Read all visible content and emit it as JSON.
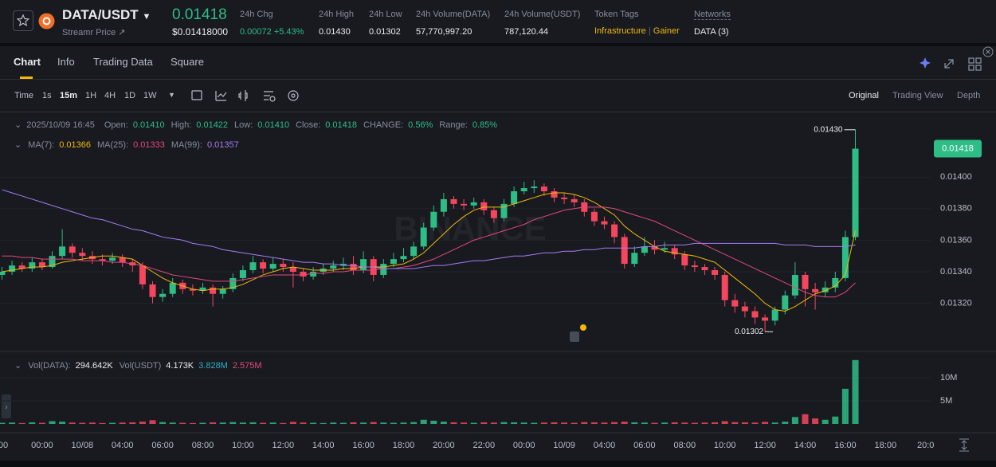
{
  "header": {
    "pair": "DATA/USDT",
    "source": "Streamr Price ↗",
    "price": "0.01418",
    "price_usd": "$0.01418000",
    "stats": [
      {
        "label": "24h Chg",
        "value": "0.00072 +5.43%"
      },
      {
        "label": "24h High",
        "value": "0.01430"
      },
      {
        "label": "24h Low",
        "value": "0.01302"
      },
      {
        "label": "24h Volume(DATA)",
        "value": "57,770,997.20"
      },
      {
        "label": "24h Volume(USDT)",
        "value": "787,120.44"
      }
    ],
    "token_tags_label": "Token Tags",
    "token_tags": [
      "Infrastructure",
      "Gainer"
    ],
    "networks_label": "Networks",
    "networks": "DATA (3)"
  },
  "tabs": [
    "Chart",
    "Info",
    "Trading Data",
    "Square"
  ],
  "intervals": [
    "Time",
    "1s",
    "15m",
    "1H",
    "4H",
    "1D",
    "1W"
  ],
  "views": [
    "Original",
    "Trading View",
    "Depth"
  ],
  "chart_data": {
    "type": "candlestick",
    "watermark": "BINANCE",
    "info": {
      "date": "2025/10/09 16:45",
      "fields": [
        {
          "label": "Open:",
          "value": "0.01410"
        },
        {
          "label": "High:",
          "value": "0.01422"
        },
        {
          "label": "Low:",
          "value": "0.01410"
        },
        {
          "label": "Close:",
          "value": "0.01418"
        },
        {
          "label": "CHANGE:",
          "value": "0.56%"
        },
        {
          "label": "Range:",
          "value": "0.85%"
        }
      ]
    },
    "up_color": "#2ebd85",
    "down_color": "#f6465d",
    "categories": [
      ":00",
      null,
      null,
      null,
      "00:00",
      null,
      null,
      null,
      "10/08",
      null,
      null,
      null,
      "04:00",
      null,
      null,
      null,
      "06:00",
      null,
      null,
      null,
      "08:00",
      null,
      null,
      null,
      "10:00",
      null,
      null,
      null,
      "12:00",
      null,
      null,
      null,
      "14:00",
      null,
      null,
      null,
      "16:00",
      null,
      null,
      null,
      "18:00",
      null,
      null,
      null,
      "20:00",
      null,
      null,
      null,
      "22:00",
      null,
      null,
      null,
      "00:00",
      null,
      null,
      null,
      "10/09",
      null,
      null,
      null,
      "04:00",
      null,
      null,
      null,
      "06:00",
      null,
      null,
      null,
      "08:00",
      null,
      null,
      null,
      "10:00",
      null,
      null,
      null,
      "12:00",
      null,
      null,
      null,
      "14:00",
      null,
      null,
      null,
      "16:00",
      null
    ],
    "axis_extension_labels": [
      "18:00",
      "20:0"
    ],
    "open": [
      0.01338,
      0.0134,
      0.01344,
      0.01342,
      0.01346,
      0.01343,
      0.0135,
      0.01356,
      0.01352,
      0.0135,
      0.01348,
      0.01347,
      0.01349,
      0.01346,
      0.01344,
      0.01332,
      0.01324,
      0.01326,
      0.01333,
      0.01329,
      0.01328,
      0.0133,
      0.01326,
      0.01329,
      0.01336,
      0.01341,
      0.01346,
      0.01342,
      0.01345,
      0.01343,
      0.0134,
      0.01337,
      0.0134,
      0.01342,
      0.01344,
      0.01345,
      0.01341,
      0.01348,
      0.01338,
      0.01345,
      0.01348,
      0.0135,
      0.01356,
      0.01368,
      0.01378,
      0.01386,
      0.01383,
      0.01382,
      0.01384,
      0.01379,
      0.01374,
      0.01383,
      0.01391,
      0.01393,
      0.01394,
      0.01391,
      0.01387,
      0.01386,
      0.01384,
      0.01378,
      0.01372,
      0.0137,
      0.01362,
      0.01345,
      0.01352,
      0.01356,
      0.01354,
      0.01355,
      0.01351,
      0.01344,
      0.01343,
      0.01341,
      0.01338,
      0.01322,
      0.01318,
      0.01315,
      0.01311,
      0.01309,
      0.01316,
      0.01325,
      0.01338,
      0.01329,
      0.01327,
      0.0133,
      0.01336,
      0.01362
    ],
    "high": [
      0.01343,
      0.01347,
      0.01346,
      0.01349,
      0.01348,
      0.01353,
      0.01367,
      0.01358,
      0.01355,
      0.01353,
      0.01351,
      0.01352,
      0.01351,
      0.01348,
      0.01346,
      0.01334,
      0.01329,
      0.01336,
      0.01335,
      0.01332,
      0.01333,
      0.01332,
      0.01331,
      0.01339,
      0.01344,
      0.0135,
      0.01348,
      0.01349,
      0.01348,
      0.01346,
      0.01342,
      0.01343,
      0.01345,
      0.01347,
      0.01349,
      0.0135,
      0.01353,
      0.0135,
      0.01348,
      0.01352,
      0.01355,
      0.01359,
      0.01371,
      0.01382,
      0.0139,
      0.01388,
      0.01386,
      0.01387,
      0.01386,
      0.01381,
      0.01386,
      0.01394,
      0.01397,
      0.01398,
      0.01396,
      0.01393,
      0.0139,
      0.01389,
      0.01386,
      0.0138,
      0.01375,
      0.01372,
      0.01364,
      0.01356,
      0.01362,
      0.0136,
      0.01359,
      0.01357,
      0.01353,
      0.01347,
      0.01345,
      0.01343,
      0.0134,
      0.01326,
      0.01321,
      0.01318,
      0.01313,
      0.01318,
      0.01328,
      0.01346,
      0.0134,
      0.01333,
      0.01334,
      0.0134,
      0.01366,
      0.0143
    ],
    "low": [
      0.01335,
      0.01338,
      0.0134,
      0.0134,
      0.01341,
      0.01342,
      0.01348,
      0.01349,
      0.01347,
      0.01345,
      0.01344,
      0.01345,
      0.01343,
      0.0134,
      0.01329,
      0.0132,
      0.01321,
      0.01324,
      0.01326,
      0.01325,
      0.01326,
      0.01318,
      0.01323,
      0.01327,
      0.01334,
      0.01339,
      0.01339,
      0.0134,
      0.0134,
      0.0133,
      0.01334,
      0.01335,
      0.01338,
      0.0134,
      0.01341,
      0.01338,
      0.01339,
      0.01334,
      0.01336,
      0.01343,
      0.01346,
      0.01348,
      0.01354,
      0.01366,
      0.01375,
      0.0138,
      0.01379,
      0.0138,
      0.01376,
      0.01371,
      0.01372,
      0.01381,
      0.01389,
      0.0139,
      0.01388,
      0.01384,
      0.01383,
      0.01381,
      0.01375,
      0.01369,
      0.01367,
      0.01358,
      0.01342,
      0.01343,
      0.0135,
      0.01351,
      0.01352,
      0.01348,
      0.01341,
      0.0134,
      0.01338,
      0.01335,
      0.01318,
      0.01314,
      0.01311,
      0.01307,
      0.01302,
      0.01306,
      0.01313,
      0.01323,
      0.01318,
      0.01316,
      0.01324,
      0.01327,
      0.01334,
      0.0136
    ],
    "close": [
      0.0134,
      0.01344,
      0.01342,
      0.01346,
      0.01343,
      0.0135,
      0.01356,
      0.01352,
      0.0135,
      0.01348,
      0.01347,
      0.01349,
      0.01346,
      0.01344,
      0.01332,
      0.01324,
      0.01326,
      0.01333,
      0.01329,
      0.01328,
      0.0133,
      0.01326,
      0.01329,
      0.01336,
      0.01341,
      0.01346,
      0.01342,
      0.01345,
      0.01343,
      0.0134,
      0.01337,
      0.0134,
      0.01342,
      0.01344,
      0.01345,
      0.01341,
      0.01348,
      0.01338,
      0.01345,
      0.01348,
      0.0135,
      0.01356,
      0.01368,
      0.01378,
      0.01386,
      0.01383,
      0.01382,
      0.01384,
      0.01379,
      0.01374,
      0.01383,
      0.01391,
      0.01393,
      0.01394,
      0.01391,
      0.01387,
      0.01386,
      0.01384,
      0.01378,
      0.01372,
      0.0137,
      0.01362,
      0.01345,
      0.01352,
      0.01356,
      0.01354,
      0.01355,
      0.01351,
      0.01344,
      0.01343,
      0.01341,
      0.01338,
      0.01322,
      0.01318,
      0.01315,
      0.01311,
      0.01309,
      0.01316,
      0.01325,
      0.01338,
      0.01329,
      0.01327,
      0.0133,
      0.01336,
      0.01362,
      0.01418
    ],
    "series": [
      {
        "name": "MA(7):",
        "legend_value": "0.01366",
        "color": "#f0b90b",
        "values": [
          0.0134,
          0.01341,
          0.01342,
          0.01343,
          0.01343,
          0.01344,
          0.01346,
          0.01347,
          0.01348,
          0.01349,
          0.0135,
          0.0135,
          0.01349,
          0.01348,
          0.01344,
          0.0134,
          0.01336,
          0.01333,
          0.01331,
          0.01329,
          0.01328,
          0.01329,
          0.01329,
          0.0133,
          0.01332,
          0.01335,
          0.01338,
          0.0134,
          0.01342,
          0.01343,
          0.01342,
          0.01341,
          0.01341,
          0.01341,
          0.01342,
          0.01342,
          0.01343,
          0.01343,
          0.01343,
          0.01344,
          0.01345,
          0.01348,
          0.01352,
          0.01358,
          0.01364,
          0.0137,
          0.01375,
          0.01379,
          0.01381,
          0.01381,
          0.01381,
          0.01383,
          0.01385,
          0.01387,
          0.01389,
          0.0139,
          0.0139,
          0.01389,
          0.01387,
          0.01384,
          0.0138,
          0.01376,
          0.01369,
          0.01364,
          0.0136,
          0.01356,
          0.01353,
          0.01352,
          0.01351,
          0.0135,
          0.01348,
          0.01346,
          0.01341,
          0.01336,
          0.01331,
          0.01326,
          0.0132,
          0.01316,
          0.01315,
          0.01318,
          0.01322,
          0.01326,
          0.01328,
          0.01331,
          0.01338,
          0.01366
        ]
      },
      {
        "name": "MA(25):",
        "legend_value": "0.01333",
        "color": "#e2497d",
        "values": [
          0.0135,
          0.0135,
          0.01349,
          0.01349,
          0.01348,
          0.01348,
          0.01348,
          0.01348,
          0.01347,
          0.01347,
          0.01347,
          0.01346,
          0.01346,
          0.01345,
          0.01344,
          0.01342,
          0.0134,
          0.01338,
          0.01337,
          0.01336,
          0.01335,
          0.01334,
          0.01334,
          0.01334,
          0.01335,
          0.01336,
          0.01337,
          0.01338,
          0.01338,
          0.01338,
          0.01338,
          0.01339,
          0.01339,
          0.0134,
          0.0134,
          0.01341,
          0.01341,
          0.01341,
          0.01342,
          0.01342,
          0.01343,
          0.01344,
          0.01346,
          0.01348,
          0.01351,
          0.01354,
          0.01357,
          0.0136,
          0.01362,
          0.01364,
          0.01366,
          0.01368,
          0.0137,
          0.01373,
          0.01375,
          0.01377,
          0.01379,
          0.0138,
          0.01381,
          0.01381,
          0.01381,
          0.0138,
          0.01378,
          0.01376,
          0.01374,
          0.01372,
          0.01369,
          0.01366,
          0.01363,
          0.0136,
          0.01357,
          0.01354,
          0.01351,
          0.01348,
          0.01345,
          0.01342,
          0.01339,
          0.01336,
          0.01333,
          0.0133,
          0.01327,
          0.01325,
          0.01324,
          0.01324,
          0.01327,
          0.01333
        ]
      },
      {
        "name": "MA(99):",
        "legend_value": "0.01357",
        "color": "#a77cf0",
        "values": [
          0.01392,
          0.0139,
          0.01388,
          0.01386,
          0.01384,
          0.01382,
          0.0138,
          0.01378,
          0.01376,
          0.01374,
          0.01373,
          0.01371,
          0.01369,
          0.01367,
          0.01366,
          0.01364,
          0.01362,
          0.01361,
          0.0136,
          0.01358,
          0.01357,
          0.01356,
          0.01354,
          0.01353,
          0.01352,
          0.01351,
          0.0135,
          0.01349,
          0.01348,
          0.01347,
          0.01346,
          0.01346,
          0.01345,
          0.01345,
          0.01344,
          0.01344,
          0.01343,
          0.01343,
          0.01342,
          0.01342,
          0.01342,
          0.01342,
          0.01343,
          0.01344,
          0.01344,
          0.01345,
          0.01346,
          0.01347,
          0.01347,
          0.01348,
          0.01349,
          0.0135,
          0.0135,
          0.01351,
          0.01352,
          0.01352,
          0.01353,
          0.01353,
          0.01354,
          0.01354,
          0.01355,
          0.01355,
          0.01355,
          0.01355,
          0.01356,
          0.01356,
          0.01357,
          0.01357,
          0.01357,
          0.01358,
          0.01358,
          0.01358,
          0.01358,
          0.01358,
          0.01358,
          0.01358,
          0.01358,
          0.01358,
          0.01357,
          0.01357,
          0.01357,
          0.01356,
          0.01356,
          0.01356,
          0.01356,
          0.01357
        ]
      }
    ],
    "annotations": [
      "0.01430",
      "0.01302"
    ],
    "last_price": {
      "value": 0.01418,
      "label": "0.01418"
    },
    "ylim": [
      0.0129,
      0.0144
    ],
    "yticks": [
      {
        "value": 0.0132,
        "label": "0.01320"
      },
      {
        "value": 0.0134,
        "label": "0.01340"
      },
      {
        "value": 0.0136,
        "label": "0.01360"
      },
      {
        "value": 0.0138,
        "label": "0.01380"
      },
      {
        "value": 0.014,
        "label": "0.01400"
      }
    ],
    "volume": {
      "legend": [
        {
          "label": "Vol(DATA):",
          "value": "294.642K"
        },
        {
          "label": "Vol(USDT)",
          "value": "4.173K"
        }
      ],
      "ma_values": [
        {
          "value": "3.828M",
          "color": "#2ab0c5"
        },
        {
          "value": "2.575M",
          "color": "#e2497d"
        }
      ],
      "values": [
        0.25,
        0.3,
        0.2,
        0.35,
        0.25,
        0.6,
        0.5,
        0.3,
        0.25,
        0.3,
        0.2,
        0.25,
        0.3,
        0.35,
        0.5,
        0.8,
        0.4,
        0.3,
        0.25,
        0.2,
        0.25,
        0.35,
        0.3,
        0.4,
        0.3,
        0.35,
        0.25,
        0.3,
        0.2,
        0.45,
        0.3,
        0.25,
        0.2,
        0.3,
        0.25,
        0.35,
        0.3,
        0.4,
        0.3,
        0.25,
        0.3,
        0.4,
        0.9,
        0.7,
        0.5,
        0.35,
        0.3,
        0.25,
        0.35,
        0.3,
        0.4,
        0.35,
        0.3,
        0.25,
        0.3,
        0.35,
        0.3,
        0.25,
        0.4,
        0.35,
        0.3,
        0.4,
        0.5,
        0.35,
        0.3,
        0.25,
        0.3,
        0.35,
        0.3,
        0.25,
        0.3,
        0.35,
        0.6,
        0.4,
        0.35,
        0.3,
        0.45,
        0.3,
        0.5,
        1.5,
        2.1,
        1.2,
        0.9,
        1.6,
        7.6,
        13.8
      ],
      "ylim": [
        0,
        14.8
      ],
      "yticks": [
        {
          "value": 5,
          "label": "5M"
        },
        {
          "value": 10,
          "label": "10M"
        }
      ]
    }
  }
}
